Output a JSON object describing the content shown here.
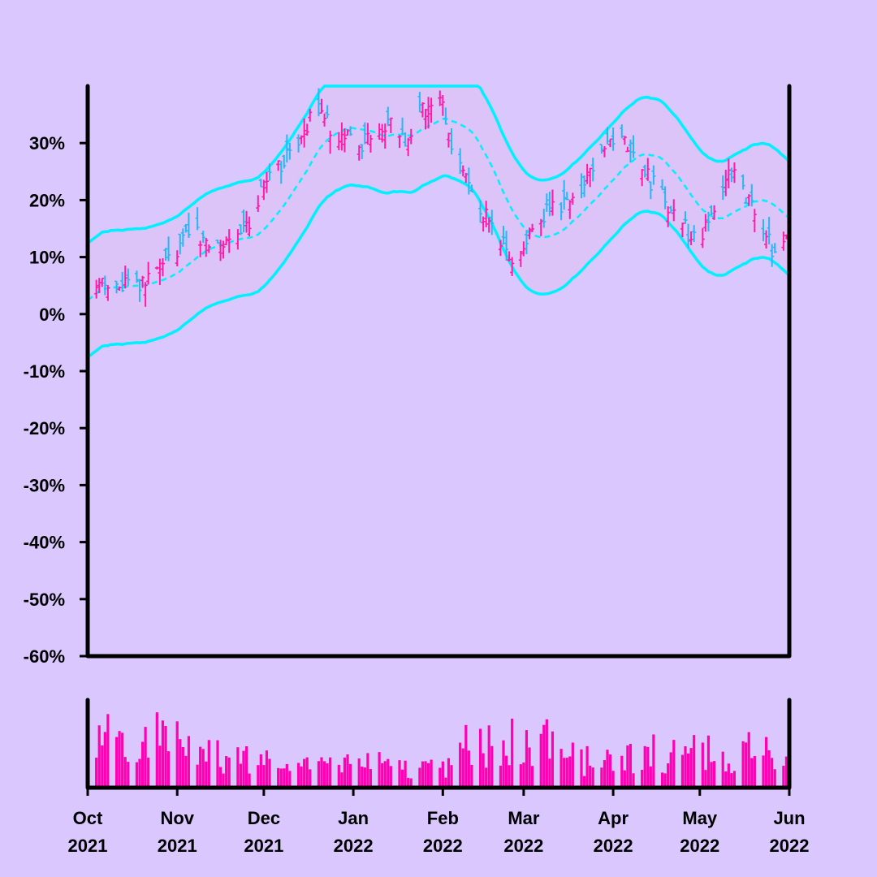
{
  "colors": {
    "background": "#d9c7fd",
    "band": "#00f0ff",
    "up": "#ff1aa8",
    "down": "#29b6f6",
    "volume": "#ff00b3",
    "axis": "#000000"
  },
  "chart_data": {
    "type": "ohlc",
    "title": "",
    "xlabel": "",
    "ylabel": "",
    "ylim": [
      -60,
      40
    ],
    "y_ticks": [
      "30%",
      "20%",
      "10%",
      "0%",
      "-10%",
      "-20%",
      "-30%",
      "-40%",
      "-50%",
      "-60%"
    ],
    "y_tick_values": [
      30,
      20,
      10,
      0,
      -10,
      -20,
      -30,
      -40,
      -50,
      -60
    ],
    "x_ticks": [
      {
        "month": "Oct",
        "year": "2021",
        "date": "2021-10-01"
      },
      {
        "month": "Nov",
        "year": "2021",
        "date": "2021-11-01"
      },
      {
        "month": "Dec",
        "year": "2021",
        "date": "2021-12-01"
      },
      {
        "month": "Jan",
        "year": "2022",
        "date": "2022-01-01"
      },
      {
        "month": "Feb",
        "year": "2022",
        "date": "2022-02-01"
      },
      {
        "month": "Mar",
        "year": "2022",
        "date": "2022-03-01"
      },
      {
        "month": "Apr",
        "year": "2022",
        "date": "2022-04-01"
      },
      {
        "month": "May",
        "year": "2022",
        "date": "2022-05-01"
      },
      {
        "month": "Jun",
        "year": "2022",
        "date": "2022-06-01"
      }
    ],
    "x_range": [
      "2021-10-01",
      "2022-06-01"
    ],
    "price_unit": "%",
    "trend_points": [
      {
        "date": "2021-10-01",
        "value": 4
      },
      {
        "date": "2021-10-08",
        "value": 6
      },
      {
        "date": "2021-10-18",
        "value": 5
      },
      {
        "date": "2021-10-28",
        "value": 9
      },
      {
        "date": "2021-11-06",
        "value": 14
      },
      {
        "date": "2021-11-15",
        "value": 11
      },
      {
        "date": "2021-11-24",
        "value": 15
      },
      {
        "date": "2021-12-03",
        "value": 24
      },
      {
        "date": "2021-12-12",
        "value": 30
      },
      {
        "date": "2021-12-20",
        "value": 37
      },
      {
        "date": "2021-12-26",
        "value": 31
      },
      {
        "date": "2022-01-04",
        "value": 30
      },
      {
        "date": "2022-01-13",
        "value": 33
      },
      {
        "date": "2022-01-19",
        "value": 30
      },
      {
        "date": "2022-01-26",
        "value": 37
      },
      {
        "date": "2022-02-01",
        "value": 38
      },
      {
        "date": "2022-02-03",
        "value": 31
      },
      {
        "date": "2022-02-09",
        "value": 24
      },
      {
        "date": "2022-02-15",
        "value": 17
      },
      {
        "date": "2022-02-22",
        "value": 12
      },
      {
        "date": "2022-02-26",
        "value": 10
      },
      {
        "date": "2022-03-04",
        "value": 15
      },
      {
        "date": "2022-03-12",
        "value": 19
      },
      {
        "date": "2022-03-20",
        "value": 20
      },
      {
        "date": "2022-03-26",
        "value": 27
      },
      {
        "date": "2022-04-02",
        "value": 30
      },
      {
        "date": "2022-04-08",
        "value": 29
      },
      {
        "date": "2022-04-15",
        "value": 23
      },
      {
        "date": "2022-04-22",
        "value": 17
      },
      {
        "date": "2022-04-30",
        "value": 13
      },
      {
        "date": "2022-05-06",
        "value": 19
      },
      {
        "date": "2022-05-12",
        "value": 25
      },
      {
        "date": "2022-05-17",
        "value": 21
      },
      {
        "date": "2022-05-23",
        "value": 14
      },
      {
        "date": "2022-05-27",
        "value": 11
      },
      {
        "date": "2022-06-01",
        "value": 14
      }
    ],
    "band": {
      "upper_cap": 40,
      "width": 10,
      "ma_window_days": 21,
      "series": [
        {
          "name": "upper band",
          "style": "solid"
        },
        {
          "name": "moving average",
          "style": "dashed"
        },
        {
          "name": "lower band",
          "style": "solid"
        }
      ]
    },
    "volume": {
      "visible": true,
      "ylim": [
        0,
        100
      ],
      "segments": [
        {
          "start": "2021-10-01",
          "end": "2021-11-10",
          "level": 62
        },
        {
          "start": "2021-11-10",
          "end": "2021-12-05",
          "level": 40
        },
        {
          "start": "2021-12-05",
          "end": "2022-01-20",
          "level": 28
        },
        {
          "start": "2022-01-20",
          "end": "2022-02-07",
          "level": 24
        },
        {
          "start": "2022-02-07",
          "end": "2022-02-25",
          "level": 50
        },
        {
          "start": "2022-02-25",
          "end": "2022-03-12",
          "level": 55
        },
        {
          "start": "2022-03-12",
          "end": "2022-04-05",
          "level": 36
        },
        {
          "start": "2022-04-05",
          "end": "2022-05-05",
          "level": 42
        },
        {
          "start": "2022-05-05",
          "end": "2022-05-20",
          "level": 45
        },
        {
          "start": "2022-05-20",
          "end": "2022-06-01",
          "level": 58
        }
      ]
    }
  }
}
